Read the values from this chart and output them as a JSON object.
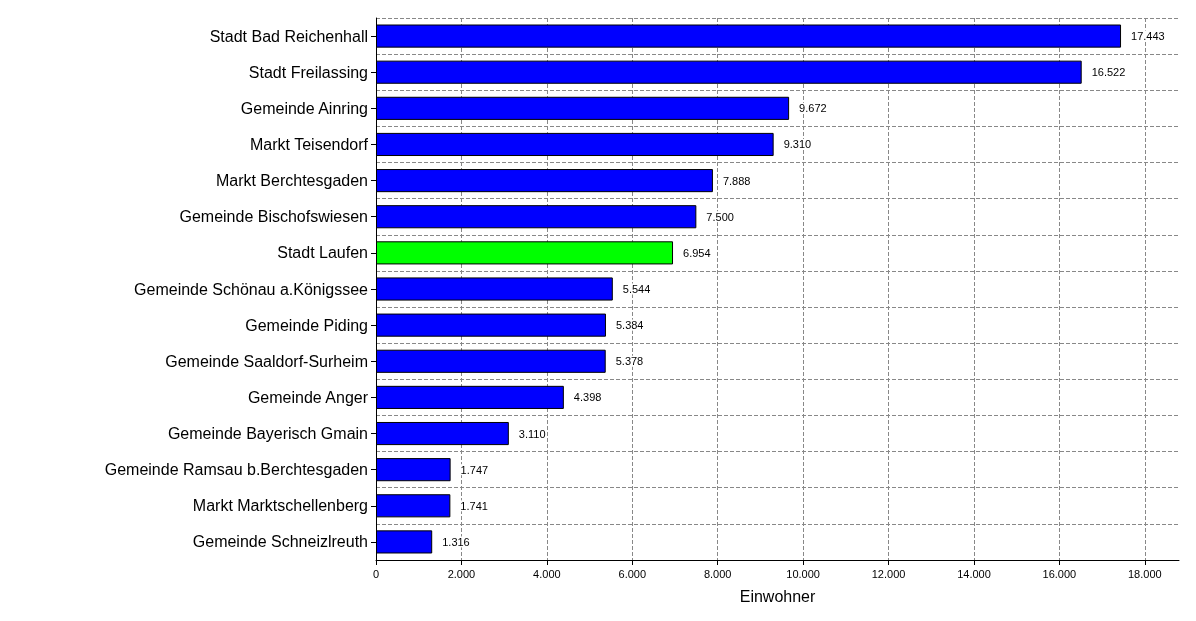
{
  "chart_data": {
    "type": "bar",
    "orientation": "horizontal",
    "xlabel": "Einwohner",
    "categories": [
      "Stadt Bad Reichenhall",
      "Stadt Freilassing",
      "Gemeinde Ainring",
      "Markt Teisendorf",
      "Markt Berchtesgaden",
      "Gemeinde Bischofswiesen",
      "Stadt Laufen",
      "Gemeinde Schönau a.Königssee",
      "Gemeinde Piding",
      "Gemeinde Saaldorf-Surheim",
      "Gemeinde Anger",
      "Gemeinde Bayerisch Gmain",
      "Gemeinde Ramsau b.Berchtesgaden",
      "Markt Marktschellenberg",
      "Gemeinde Schneizlreuth"
    ],
    "values": [
      17443,
      16522,
      9672,
      9310,
      7888,
      7500,
      6954,
      5544,
      5384,
      5378,
      4398,
      3110,
      1747,
      1741,
      1316
    ],
    "value_labels": [
      "17.443",
      "16.522",
      "9.672",
      "9.310",
      "7.888",
      "7.500",
      "6.954",
      "5.544",
      "5.384",
      "5.378",
      "4.398",
      "3.110",
      "1.747",
      "1.741",
      "1.316"
    ],
    "colors": [
      "#0000ff",
      "#0000ff",
      "#0000ff",
      "#0000ff",
      "#0000ff",
      "#0000ff",
      "#00ff00",
      "#0000ff",
      "#0000ff",
      "#0000ff",
      "#0000ff",
      "#0000ff",
      "#0000ff",
      "#0000ff",
      "#0000ff"
    ],
    "xlim": [
      0,
      18800
    ],
    "xticks": [
      0,
      {
        "value": 2000,
        "label": "2.000"
      },
      {
        "value": 4000,
        "label": "4.000"
      },
      {
        "value": 6000,
        "label": "6.000"
      },
      {
        "value": 8000,
        "label": "8.000"
      },
      {
        "value": 10000,
        "label": "10.000"
      },
      {
        "value": 12000,
        "label": "12.000"
      },
      {
        "value": 14000,
        "label": "14.000"
      },
      {
        "value": 16000,
        "label": "16.000"
      },
      {
        "value": 18000,
        "label": "18.000"
      }
    ],
    "grid": true,
    "line_style": "dashed"
  }
}
